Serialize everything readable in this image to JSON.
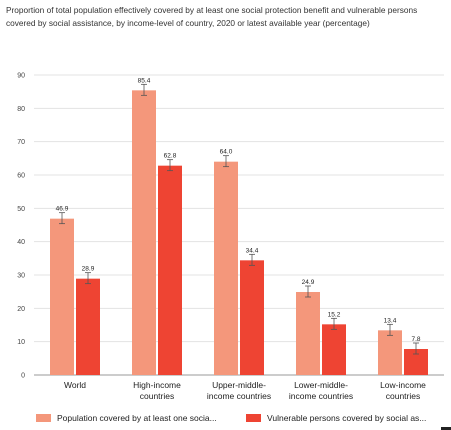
{
  "chart_data": {
    "type": "bar",
    "title": "Proportion of total population effectively covered by at least one social protection benefit and vulnerable persons covered by social assistance, by income-level of country, 2020 or latest available year (percentage)",
    "categories": [
      [
        "World"
      ],
      [
        "High-income",
        "countries"
      ],
      [
        "Upper-middle-",
        "income countries"
      ],
      [
        "Lower-middle-",
        "income countries"
      ],
      [
        "Low-income",
        "countries"
      ]
    ],
    "series": [
      {
        "name": "Population covered by at least one socia...",
        "color": "#f4977b",
        "values": [
          46.9,
          85.4,
          64.0,
          24.9,
          13.4
        ],
        "value_labels": [
          "46.9",
          "85.4",
          "64.0",
          "24.9",
          "13.4"
        ]
      },
      {
        "name": "Vulnerable persons covered by social as...",
        "color": "#ee4433",
        "values": [
          28.9,
          62.8,
          34.4,
          15.2,
          7.8
        ],
        "value_labels": [
          "28.9",
          "62.8",
          "34.4",
          "15.2",
          "7.8"
        ]
      }
    ],
    "ylim": [
      0,
      90
    ],
    "yticks": [
      0,
      10,
      20,
      30,
      40,
      50,
      60,
      70,
      80,
      90
    ],
    "grid": true,
    "legend_position": "bottom"
  }
}
